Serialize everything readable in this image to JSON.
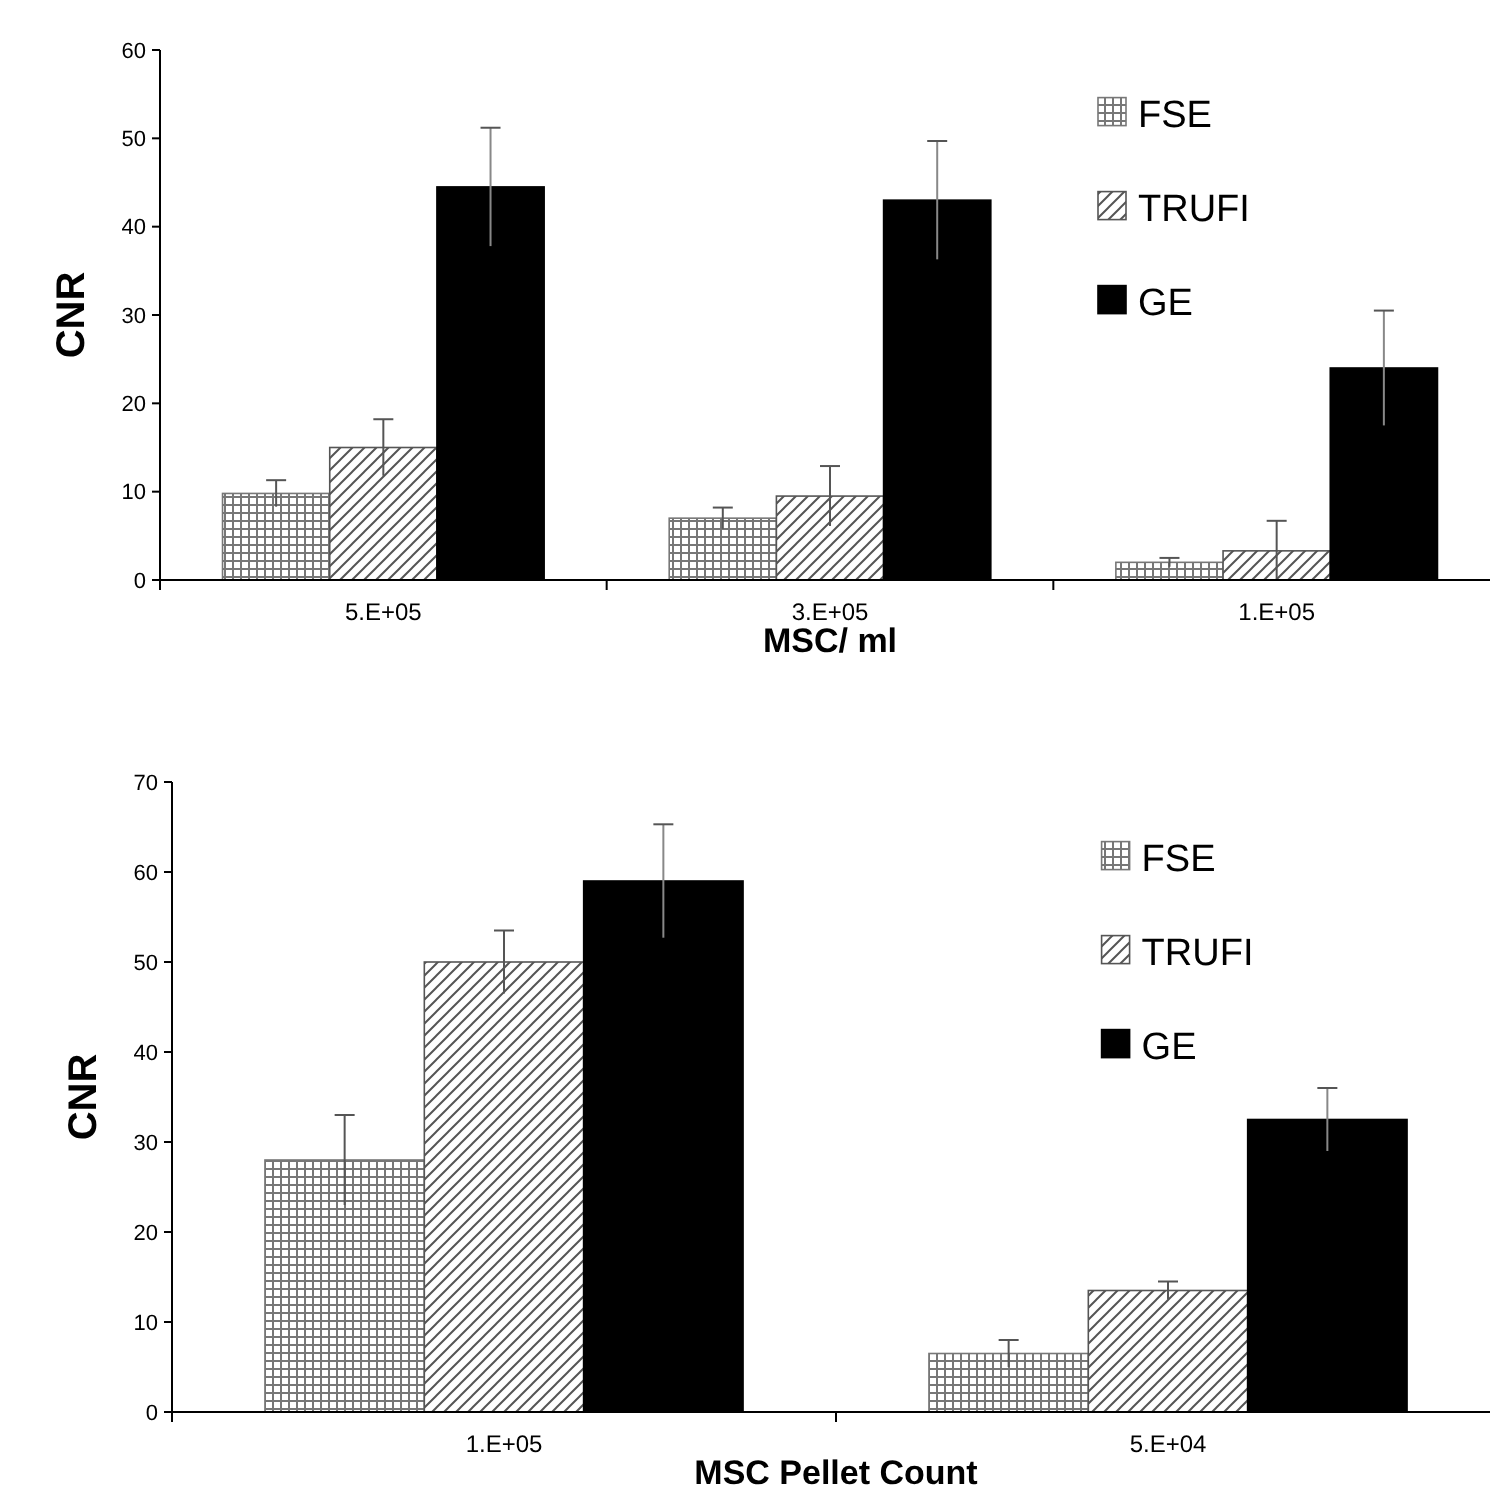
{
  "chart_data": [
    {
      "type": "bar",
      "ylabel": "CNR",
      "xlabel": "MSC/ ml",
      "categories": [
        "5.E+05",
        "3.E+05",
        "1.E+05"
      ],
      "ylim": [
        0,
        60
      ],
      "yticks": [
        0,
        10,
        20,
        30,
        40,
        50,
        60
      ],
      "legend": "top right",
      "grid": false,
      "series": [
        {
          "name": "FSE",
          "color": "#777777",
          "values": [
            9.8,
            7,
            2
          ],
          "errors": [
            1.5,
            1.2,
            0.5
          ]
        },
        {
          "name": "TRUFI",
          "color": "#555555",
          "values": [
            15,
            9.5,
            3.3
          ],
          "errors": [
            3.2,
            3.4,
            3.4
          ]
        },
        {
          "name": "GE",
          "color": "#000000",
          "values": [
            44.5,
            43,
            24
          ],
          "errors": [
            6.7,
            6.7,
            6.5
          ]
        }
      ]
    },
    {
      "type": "bar",
      "ylabel": "CNR",
      "xlabel": "MSC Pellet Count",
      "categories": [
        "1.E+05",
        "5.E+04"
      ],
      "ylim": [
        0,
        70
      ],
      "yticks": [
        0,
        10,
        20,
        30,
        40,
        50,
        60,
        70
      ],
      "legend": "top right",
      "grid": false,
      "series": [
        {
          "name": "FSE",
          "color": "#777777",
          "values": [
            28,
            6.5
          ],
          "errors": [
            5,
            1.5
          ]
        },
        {
          "name": "TRUFI",
          "color": "#555555",
          "values": [
            50,
            13.5
          ],
          "errors": [
            3.5,
            1
          ]
        },
        {
          "name": "GE",
          "color": "#000000",
          "values": [
            59,
            32.5
          ],
          "errors": [
            6.3,
            3.5
          ]
        }
      ]
    }
  ]
}
